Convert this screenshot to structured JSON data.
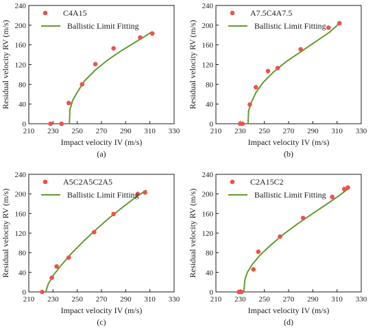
{
  "colors": {
    "points": "#f0504a",
    "fit": "#5f9a2c",
    "axis": "#1a1a1a"
  },
  "chart_data": [
    {
      "type": "scatter",
      "panel_label": "(a)",
      "xlabel": "Impact velocity IV (m/s)",
      "ylabel": "Residual velocity RV (m/s)",
      "xlim": [
        210,
        330
      ],
      "ylim": [
        0,
        240
      ],
      "xticks": [
        210,
        230,
        250,
        270,
        290,
        310,
        330
      ],
      "yticks": [
        0,
        40,
        80,
        120,
        160,
        200,
        240
      ],
      "legend": {
        "position": "top-left",
        "points_label": "C4A15",
        "fit_label": "Ballistic Limit Fitting"
      },
      "points": [
        {
          "x": 228,
          "y": 0
        },
        {
          "x": 237,
          "y": 0
        },
        {
          "x": 243,
          "y": 42
        },
        {
          "x": 254,
          "y": 80
        },
        {
          "x": 265,
          "y": 121
        },
        {
          "x": 280,
          "y": 153
        },
        {
          "x": 302,
          "y": 175
        },
        {
          "x": 312,
          "y": 183
        }
      ],
      "fit": {
        "ballistic_limit": 243.5,
        "x_end": 312,
        "curve": [
          {
            "x": 243.5,
            "y": 0
          },
          {
            "x": 244,
            "y": 29
          },
          {
            "x": 246,
            "y": 46
          },
          {
            "x": 250,
            "y": 64
          },
          {
            "x": 256,
            "y": 87
          },
          {
            "x": 265,
            "y": 109
          },
          {
            "x": 275,
            "y": 129
          },
          {
            "x": 285,
            "y": 146
          },
          {
            "x": 295,
            "y": 161
          },
          {
            "x": 305,
            "y": 176
          },
          {
            "x": 312,
            "y": 187
          }
        ]
      }
    },
    {
      "type": "scatter",
      "panel_label": "(b)",
      "xlabel": "Impact velocity IV (m/s)",
      "ylabel": "Residual velocity RV (m/s)",
      "xlim": [
        210,
        330
      ],
      "ylim": [
        0,
        240
      ],
      "xticks": [
        210,
        230,
        250,
        270,
        290,
        310,
        330
      ],
      "yticks": [
        0,
        40,
        80,
        120,
        160,
        200,
        240
      ],
      "legend": {
        "position": "top-left",
        "points_label": "A7.5C4A7.5",
        "fit_label": "Ballistic Limit Fitting"
      },
      "points": [
        {
          "x": 230,
          "y": 0
        },
        {
          "x": 232,
          "y": 0
        },
        {
          "x": 238,
          "y": 39
        },
        {
          "x": 243,
          "y": 74
        },
        {
          "x": 253,
          "y": 107
        },
        {
          "x": 261,
          "y": 113
        },
        {
          "x": 280,
          "y": 151
        },
        {
          "x": 303,
          "y": 195
        },
        {
          "x": 312,
          "y": 204
        }
      ],
      "fit": {
        "ballistic_limit": 236.5,
        "x_end": 312,
        "curve": [
          {
            "x": 236.5,
            "y": 0
          },
          {
            "x": 237,
            "y": 26
          },
          {
            "x": 239,
            "y": 42
          },
          {
            "x": 243,
            "y": 63
          },
          {
            "x": 249,
            "y": 84
          },
          {
            "x": 258,
            "y": 106
          },
          {
            "x": 268,
            "y": 126
          },
          {
            "x": 280,
            "y": 146
          },
          {
            "x": 292,
            "y": 166
          },
          {
            "x": 304,
            "y": 186
          },
          {
            "x": 312,
            "y": 204
          }
        ]
      }
    },
    {
      "type": "scatter",
      "panel_label": "(c)",
      "xlabel": "Impact velocity IV (m/s)",
      "ylabel": "Residual velocity RV (m/s)",
      "xlim": [
        210,
        330
      ],
      "ylim": [
        0,
        240
      ],
      "xticks": [
        210,
        230,
        250,
        270,
        290,
        310,
        330
      ],
      "yticks": [
        0,
        40,
        80,
        120,
        160,
        200,
        240
      ],
      "legend": {
        "position": "top-left",
        "points_label": "A5C2A5C2A5",
        "fit_label": "Ballistic Limit Fitting"
      },
      "points": [
        {
          "x": 221,
          "y": 0
        },
        {
          "x": 229,
          "y": 29
        },
        {
          "x": 233,
          "y": 52
        },
        {
          "x": 243,
          "y": 70
        },
        {
          "x": 264,
          "y": 122
        },
        {
          "x": 280,
          "y": 159
        },
        {
          "x": 300,
          "y": 200
        },
        {
          "x": 306,
          "y": 203
        }
      ],
      "fit": {
        "ballistic_limit": 224,
        "x_end": 307,
        "curve": [
          {
            "x": 224,
            "y": 0
          },
          {
            "x": 226,
            "y": 16
          },
          {
            "x": 230,
            "y": 33
          },
          {
            "x": 236,
            "y": 52
          },
          {
            "x": 245,
            "y": 78
          },
          {
            "x": 255,
            "y": 103
          },
          {
            "x": 265,
            "y": 126
          },
          {
            "x": 275,
            "y": 148
          },
          {
            "x": 285,
            "y": 168
          },
          {
            "x": 296,
            "y": 189
          },
          {
            "x": 307,
            "y": 208
          }
        ]
      }
    },
    {
      "type": "scatter",
      "panel_label": "(d)",
      "xlabel": "Impact velocity IV (m/s)",
      "ylabel": "Residual velocity RV (m/s)",
      "xlim": [
        210,
        330
      ],
      "ylim": [
        0,
        240
      ],
      "xticks": [
        210,
        230,
        250,
        270,
        290,
        310,
        330
      ],
      "yticks": [
        0,
        40,
        80,
        120,
        160,
        200,
        240
      ],
      "legend": {
        "position": "top-left",
        "points_label": "C2A15C2",
        "fit_label": "Ballistic Limit Fitting"
      },
      "points": [
        {
          "x": 229,
          "y": 0
        },
        {
          "x": 231,
          "y": 0
        },
        {
          "x": 241,
          "y": 46
        },
        {
          "x": 245,
          "y": 82
        },
        {
          "x": 263,
          "y": 113
        },
        {
          "x": 282,
          "y": 151
        },
        {
          "x": 306,
          "y": 194
        },
        {
          "x": 316,
          "y": 210
        },
        {
          "x": 319,
          "y": 213
        }
      ],
      "fit": {
        "ballistic_limit": 233,
        "x_end": 320,
        "curve": [
          {
            "x": 233,
            "y": 0
          },
          {
            "x": 234,
            "y": 26
          },
          {
            "x": 236,
            "y": 40
          },
          {
            "x": 240,
            "y": 56
          },
          {
            "x": 246,
            "y": 74
          },
          {
            "x": 255,
            "y": 95
          },
          {
            "x": 266,
            "y": 118
          },
          {
            "x": 278,
            "y": 140
          },
          {
            "x": 290,
            "y": 160
          },
          {
            "x": 302,
            "y": 180
          },
          {
            "x": 312,
            "y": 197
          },
          {
            "x": 320,
            "y": 212
          }
        ]
      }
    }
  ]
}
